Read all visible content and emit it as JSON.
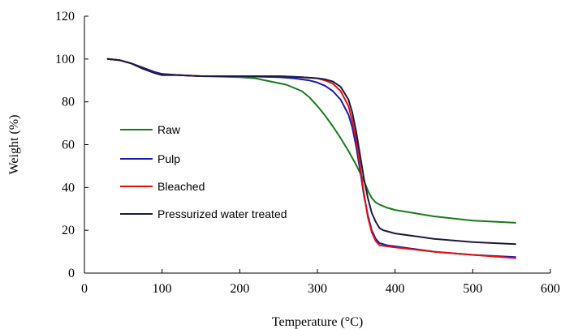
{
  "chart_data": {
    "type": "line",
    "xlabel": "Temperature (°C)",
    "ylabel": "Weight (%)",
    "xlim": [
      0,
      600
    ],
    "ylim": [
      0,
      120
    ],
    "xticks": [
      0,
      100,
      200,
      300,
      400,
      500,
      600
    ],
    "yticks": [
      0,
      20,
      40,
      60,
      80,
      100,
      120
    ],
    "grid": false,
    "legend_position": "left-center",
    "series": [
      {
        "name": "Raw",
        "color": "#1a7a1a",
        "x": [
          30,
          45,
          60,
          75,
          90,
          100,
          120,
          150,
          200,
          220,
          240,
          260,
          280,
          290,
          300,
          310,
          320,
          330,
          340,
          350,
          360,
          365,
          370,
          375,
          380,
          390,
          400,
          450,
          500,
          555
        ],
        "y": [
          100,
          99.5,
          98,
          96,
          94,
          93,
          92.5,
          92,
          91.5,
          91,
          89.5,
          88,
          85,
          82,
          78,
          73.5,
          68.5,
          63,
          57,
          50.5,
          43,
          38.5,
          35,
          33,
          32,
          30.5,
          29.5,
          26.5,
          24.5,
          23.5
        ]
      },
      {
        "name": "Pulp",
        "color": "#1a1ab0",
        "x": [
          30,
          45,
          60,
          75,
          90,
          100,
          120,
          150,
          200,
          250,
          270,
          290,
          300,
          310,
          320,
          330,
          340,
          345,
          350,
          355,
          360,
          365,
          370,
          375,
          380,
          390,
          400,
          450,
          500,
          555
        ],
        "y": [
          100,
          99.5,
          98,
          96,
          94,
          93,
          92.5,
          92,
          92,
          91.5,
          91,
          90,
          89,
          87.5,
          85,
          81,
          74,
          68,
          59,
          48,
          36,
          27,
          20,
          16,
          14,
          13,
          12.5,
          10,
          8.5,
          7.5
        ]
      },
      {
        "name": "Bleached",
        "color": "#e01010",
        "x": [
          30,
          45,
          60,
          75,
          90,
          100,
          120,
          150,
          200,
          250,
          280,
          300,
          310,
          320,
          330,
          340,
          345,
          350,
          355,
          360,
          365,
          370,
          375,
          380,
          390,
          400,
          450,
          500,
          555
        ],
        "y": [
          100,
          99.5,
          98,
          95.5,
          93.5,
          92.5,
          92.5,
          92,
          92,
          92,
          91.5,
          91,
          90,
          88.5,
          85,
          78,
          71,
          62,
          50,
          37,
          26,
          19,
          15,
          13,
          12.5,
          12,
          10,
          8.5,
          7
        ]
      },
      {
        "name": "Pressurized water treated",
        "color": "#1a1a40",
        "x": [
          30,
          45,
          60,
          75,
          90,
          100,
          120,
          150,
          200,
          250,
          280,
          300,
          310,
          320,
          330,
          340,
          345,
          350,
          355,
          360,
          365,
          370,
          375,
          380,
          385,
          390,
          400,
          450,
          500,
          555
        ],
        "y": [
          100,
          99.5,
          98,
          95.5,
          93.5,
          92.5,
          92.5,
          92,
          92,
          92,
          91.5,
          91,
          90.5,
          89.5,
          87,
          81,
          75,
          66,
          55,
          44,
          35,
          28,
          24,
          21,
          20,
          19.5,
          18.5,
          16,
          14.5,
          13.5
        ]
      }
    ]
  }
}
